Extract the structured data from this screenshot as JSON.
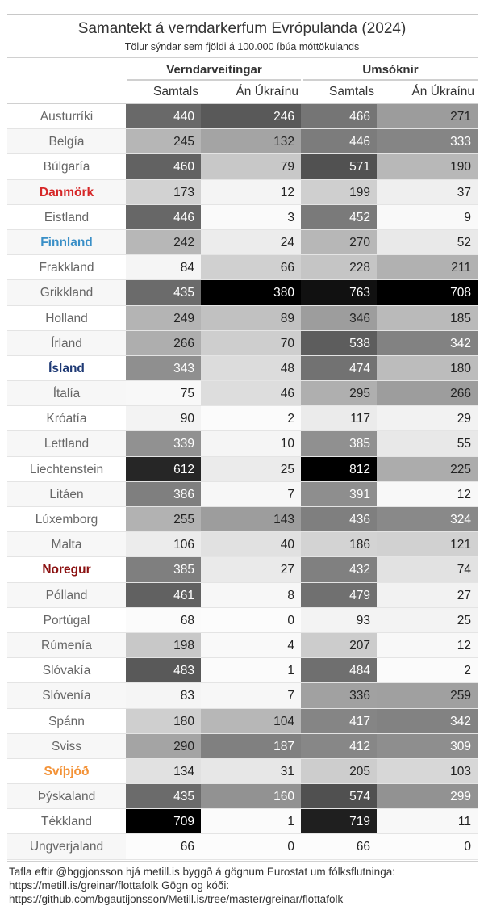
{
  "header": {
    "title": "Samantekt á verndarkerfum Evrópulanda (2024)",
    "subtitle": "Tölur sýndar sem fjöldi á 100.000 íbúa móttökulands"
  },
  "caption": {
    "line1": "Tafla eftir @bggjonsson hjá metill.is byggð á gögnum Eurostat um fólksflutninga:",
    "line2": "https://metill.is/greinar/flottafolk Gögn og kóði:",
    "line3": "https://github.com/bgautijonsson/Metill.is/tree/master/greinar/flottafolk"
  },
  "chart_data": {
    "type": "table",
    "title": "Samantekt á verndarkerfum Evrópulanda (2024)",
    "subtitle": "Tölur sýndar sem fjöldi á 100.000 íbúa móttökulands",
    "column_groups": [
      {
        "label": "Verndarveitingar",
        "columns": [
          "Samtals",
          "Án Úkraínu"
        ]
      },
      {
        "label": "Umsóknir",
        "columns": [
          "Samtals",
          "Án Úkraínu"
        ]
      }
    ],
    "rows": [
      {
        "country": "Austurríki",
        "values": [
          440,
          246,
          466,
          271
        ]
      },
      {
        "country": "Belgía",
        "values": [
          245,
          132,
          446,
          333
        ]
      },
      {
        "country": "Búlgaría",
        "values": [
          460,
          79,
          571,
          190
        ]
      },
      {
        "country": "Danmörk",
        "values": [
          173,
          12,
          199,
          37
        ],
        "highlight_color": "#d62728"
      },
      {
        "country": "Eistland",
        "values": [
          446,
          3,
          452,
          9
        ]
      },
      {
        "country": "Finnland",
        "values": [
          242,
          24,
          270,
          52
        ],
        "highlight_color": "#3a8fc7"
      },
      {
        "country": "Frakkland",
        "values": [
          84,
          66,
          228,
          211
        ]
      },
      {
        "country": "Grikkland",
        "values": [
          435,
          380,
          763,
          708
        ]
      },
      {
        "country": "Holland",
        "values": [
          249,
          89,
          346,
          185
        ]
      },
      {
        "country": "Írland",
        "values": [
          266,
          70,
          538,
          342
        ]
      },
      {
        "country": "Ísland",
        "values": [
          343,
          48,
          474,
          180
        ],
        "highlight_color": "#1f3a75"
      },
      {
        "country": "Ítalía",
        "values": [
          75,
          46,
          295,
          266
        ]
      },
      {
        "country": "Króatía",
        "values": [
          90,
          2,
          117,
          29
        ]
      },
      {
        "country": "Lettland",
        "values": [
          339,
          10,
          385,
          55
        ]
      },
      {
        "country": "Liechtenstein",
        "values": [
          612,
          25,
          812,
          225
        ]
      },
      {
        "country": "Litáen",
        "values": [
          386,
          7,
          391,
          12
        ]
      },
      {
        "country": "Lúxemborg",
        "values": [
          255,
          143,
          436,
          324
        ]
      },
      {
        "country": "Malta",
        "values": [
          106,
          40,
          186,
          121
        ]
      },
      {
        "country": "Noregur",
        "values": [
          385,
          27,
          432,
          74
        ],
        "highlight_color": "#8b1111"
      },
      {
        "country": "Pólland",
        "values": [
          461,
          8,
          479,
          27
        ]
      },
      {
        "country": "Portúgal",
        "values": [
          68,
          0,
          93,
          25
        ]
      },
      {
        "country": "Rúmenía",
        "values": [
          198,
          4,
          207,
          12
        ]
      },
      {
        "country": "Slóvakía",
        "values": [
          483,
          1,
          484,
          2
        ]
      },
      {
        "country": "Slóvenía",
        "values": [
          83,
          7,
          336,
          259
        ]
      },
      {
        "country": "Spánn",
        "values": [
          180,
          104,
          417,
          342
        ]
      },
      {
        "country": "Sviss",
        "values": [
          290,
          187,
          412,
          309
        ]
      },
      {
        "country": "Svíþjóð",
        "values": [
          134,
          31,
          205,
          103
        ],
        "highlight_color": "#f39237"
      },
      {
        "country": "Þýskaland",
        "values": [
          435,
          160,
          574,
          299
        ]
      },
      {
        "country": "Tékkland",
        "values": [
          709,
          1,
          719,
          11
        ]
      },
      {
        "country": "Ungverjaland",
        "values": [
          66,
          0,
          66,
          0
        ]
      }
    ],
    "cell_fill": "grayscale by value within each column (white = lowest, black = highest)",
    "colors": {
      "low": "#ffffff",
      "high": "#000000",
      "text_dark": "#222222",
      "text_light": "#ffffff",
      "country_text": "#666666"
    }
  }
}
